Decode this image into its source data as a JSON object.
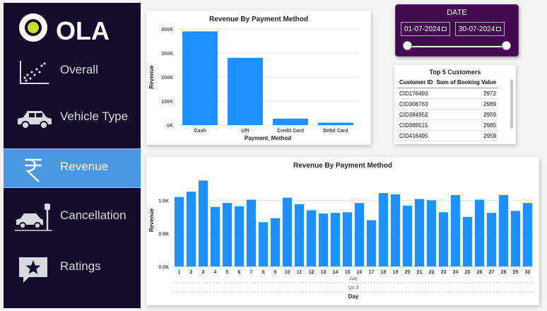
{
  "brand": {
    "name": "OLA"
  },
  "nav": [
    {
      "label": "Overall",
      "icon": "scatter-chart-icon",
      "active": false
    },
    {
      "label": "Vehicle Type",
      "icon": "car-icon",
      "active": false
    },
    {
      "label": "Revenue",
      "icon": "rupee-icon",
      "active": true
    },
    {
      "label": "Cancellation",
      "icon": "parking-car-icon",
      "active": false
    },
    {
      "label": "Ratings",
      "icon": "star-message-icon",
      "active": false
    }
  ],
  "colors": {
    "sidebar": "#120b29",
    "active_nav": "#4a97e4",
    "bar": "#1e90ff",
    "date_bg": "#420a4e"
  },
  "date_filter": {
    "title": "DATE",
    "start": "01-07-2024",
    "end": "30-07-2024",
    "start_icon": "calendar-icon",
    "end_icon": "calendar-icon"
  },
  "top_customers": {
    "title": "Top 5 Customers",
    "columns": [
      "Customer ID",
      "Sum of Booking Value"
    ],
    "rows": [
      [
        "CID176493",
        "2972"
      ],
      [
        "CID308763",
        "2989"
      ],
      [
        "CID384952",
        "2959"
      ],
      [
        "CID389515",
        "2985"
      ],
      [
        "CID416495",
        "2959"
      ]
    ]
  },
  "chart_data": [
    {
      "type": "bar",
      "title": "Revenue By Payment Method",
      "xlabel": "Payment_Method",
      "ylabel": "Revenue",
      "categories": [
        "Cash",
        "UPI",
        "Credit Card",
        "Debit Card"
      ],
      "values": [
        390000,
        280000,
        27000,
        10000
      ],
      "ylim": [
        0,
        400000
      ],
      "yticks": [
        "0K",
        "100K",
        "200K",
        "300K",
        "400K"
      ],
      "grid": true
    },
    {
      "type": "bar",
      "title": "Revenue By Payment Method",
      "xlabel": "Day",
      "ylabel": "Revenue",
      "x_hierarchy": [
        "July",
        "Qtr 3"
      ],
      "categories": [
        "1",
        "2",
        "3",
        "4",
        "5",
        "6",
        "7",
        "8",
        "9",
        "10",
        "11",
        "12",
        "13",
        "14",
        "15",
        "16",
        "17",
        "18",
        "19",
        "20",
        "21",
        "22",
        "23",
        "24",
        "25",
        "26",
        "27",
        "28",
        "29",
        "30"
      ],
      "values": [
        1050,
        1130,
        1300,
        900,
        960,
        910,
        1010,
        670,
        730,
        1040,
        940,
        850,
        800,
        810,
        820,
        960,
        700,
        1110,
        1090,
        920,
        1020,
        1000,
        820,
        1080,
        750,
        1010,
        810,
        1080,
        840,
        960
      ],
      "ylim": [
        0,
        1400
      ],
      "yticks": [
        "0.0K",
        "0.5K",
        "1.0K"
      ],
      "grid": true
    }
  ]
}
